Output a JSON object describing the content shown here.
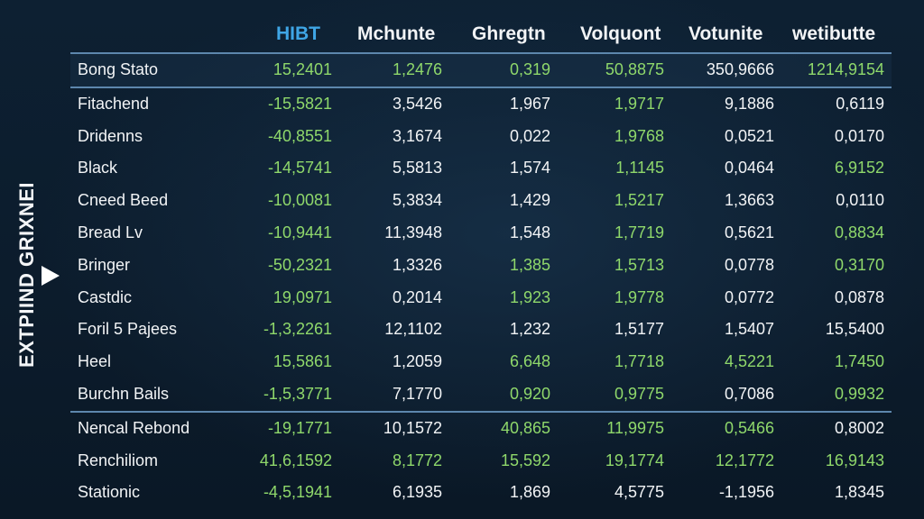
{
  "side": {
    "label": "EXTPIIND GRIXNEI"
  },
  "columns": [
    {
      "label": "HIBT",
      "accent": true
    },
    {
      "label": "Mchunte",
      "accent": false
    },
    {
      "label": "Ghregtn",
      "accent": false
    },
    {
      "label": "Volquont",
      "accent": false
    },
    {
      "label": "Votunite",
      "accent": false
    },
    {
      "label": "wetibutte",
      "accent": false
    }
  ],
  "summary_row": {
    "label": "Bong Stato",
    "cells": [
      {
        "v": "15,2401",
        "c": "g"
      },
      {
        "v": "1,2476",
        "c": "g"
      },
      {
        "v": "0,319",
        "c": "g"
      },
      {
        "v": "50,8875",
        "c": "g"
      },
      {
        "v": "350,9666",
        "c": "w"
      },
      {
        "v": "1214,9154",
        "c": "g"
      }
    ]
  },
  "rows": [
    {
      "label": "Fitachend",
      "cells": [
        {
          "v": "-15,5821",
          "c": "g"
        },
        {
          "v": "3,5426",
          "c": "w"
        },
        {
          "v": "1,967",
          "c": "w"
        },
        {
          "v": "1,9717",
          "c": "g"
        },
        {
          "v": "9,1886",
          "c": "w"
        },
        {
          "v": "0,6119",
          "c": "w"
        }
      ]
    },
    {
      "label": "Dridenns",
      "cells": [
        {
          "v": "-40,8551",
          "c": "g"
        },
        {
          "v": "3,1674",
          "c": "w"
        },
        {
          "v": "0,022",
          "c": "w"
        },
        {
          "v": "1,9768",
          "c": "g"
        },
        {
          "v": "0,0521",
          "c": "w"
        },
        {
          "v": "0,0170",
          "c": "w"
        }
      ]
    },
    {
      "label": "Black",
      "cells": [
        {
          "v": "-14,5741",
          "c": "g"
        },
        {
          "v": "5,5813",
          "c": "w"
        },
        {
          "v": "1,574",
          "c": "w"
        },
        {
          "v": "1,1145",
          "c": "g"
        },
        {
          "v": "0,0464",
          "c": "w"
        },
        {
          "v": "6,9152",
          "c": "g"
        }
      ]
    },
    {
      "label": "Cneed Beed",
      "cells": [
        {
          "v": "-10,0081",
          "c": "g"
        },
        {
          "v": "5,3834",
          "c": "w"
        },
        {
          "v": "1,429",
          "c": "w"
        },
        {
          "v": "1,5217",
          "c": "g"
        },
        {
          "v": "1,3663",
          "c": "w"
        },
        {
          "v": "0,0110",
          "c": "w"
        }
      ]
    },
    {
      "label": "Bread Lv",
      "cells": [
        {
          "v": "-10,9441",
          "c": "g"
        },
        {
          "v": "11,3948",
          "c": "w"
        },
        {
          "v": "1,548",
          "c": "w"
        },
        {
          "v": "1,7719",
          "c": "g"
        },
        {
          "v": "0,5621",
          "c": "w"
        },
        {
          "v": "0,8834",
          "c": "g"
        }
      ]
    },
    {
      "label": "Bringer",
      "cells": [
        {
          "v": "-50,2321",
          "c": "g"
        },
        {
          "v": "1,3326",
          "c": "w"
        },
        {
          "v": "1,385",
          "c": "g"
        },
        {
          "v": "1,5713",
          "c": "g"
        },
        {
          "v": "0,0778",
          "c": "w"
        },
        {
          "v": "0,3170",
          "c": "g"
        }
      ]
    },
    {
      "label": "Castdic",
      "cells": [
        {
          "v": "19,0971",
          "c": "g"
        },
        {
          "v": "0,2014",
          "c": "w"
        },
        {
          "v": "1,923",
          "c": "g"
        },
        {
          "v": "1,9778",
          "c": "g"
        },
        {
          "v": "0,0772",
          "c": "w"
        },
        {
          "v": "0,0878",
          "c": "w"
        }
      ]
    },
    {
      "label": "Foril 5 Pajees",
      "cells": [
        {
          "v": "-1,3,2261",
          "c": "g"
        },
        {
          "v": "12,1102",
          "c": "w"
        },
        {
          "v": "1,232",
          "c": "w"
        },
        {
          "v": "1,5177",
          "c": "w"
        },
        {
          "v": "1,5407",
          "c": "w"
        },
        {
          "v": "15,5400",
          "c": "w"
        }
      ]
    },
    {
      "label": "Heel",
      "cells": [
        {
          "v": "15,5861",
          "c": "g"
        },
        {
          "v": "1,2059",
          "c": "w"
        },
        {
          "v": "6,648",
          "c": "g"
        },
        {
          "v": "1,7718",
          "c": "g"
        },
        {
          "v": "4,5221",
          "c": "g"
        },
        {
          "v": "1,7450",
          "c": "g"
        }
      ]
    },
    {
      "label": "Burchn Baіls",
      "cells": [
        {
          "v": "-1,5,3771",
          "c": "g"
        },
        {
          "v": "7,1770",
          "c": "w"
        },
        {
          "v": "0,920",
          "c": "g"
        },
        {
          "v": "0,9775",
          "c": "g"
        },
        {
          "v": "0,7086",
          "c": "w"
        },
        {
          "v": "0,9932",
          "c": "g"
        }
      ]
    }
  ],
  "footer_rows": [
    {
      "label": "Nencal Rebond",
      "cells": [
        {
          "v": "-19,1771",
          "c": "g"
        },
        {
          "v": "10,1572",
          "c": "w"
        },
        {
          "v": "40,865",
          "c": "g"
        },
        {
          "v": "11,9975",
          "c": "g"
        },
        {
          "v": "0,5466",
          "c": "g"
        },
        {
          "v": "0,8002",
          "c": "w"
        }
      ]
    },
    {
      "label": "Renchiliom",
      "cells": [
        {
          "v": "41,6,1592",
          "c": "g"
        },
        {
          "v": "8,1772",
          "c": "g"
        },
        {
          "v": "15,592",
          "c": "g"
        },
        {
          "v": "19,1774",
          "c": "g"
        },
        {
          "v": "12,1772",
          "c": "g"
        },
        {
          "v": "16,9143",
          "c": "g"
        }
      ]
    },
    {
      "label": "Stationic",
      "cells": [
        {
          "v": "-4,5,1941",
          "c": "g"
        },
        {
          "v": "6,1935",
          "c": "w"
        },
        {
          "v": "1,869",
          "c": "w"
        },
        {
          "v": "4,5775",
          "c": "w"
        },
        {
          "v": "-1,1956",
          "c": "w"
        },
        {
          "v": "1,8345",
          "c": "w"
        }
      ]
    }
  ],
  "colors": {
    "accent": "#3fa6e6",
    "positive": "#8fd86b",
    "divider": "#5d87ad",
    "background": "#0c1c2c"
  }
}
